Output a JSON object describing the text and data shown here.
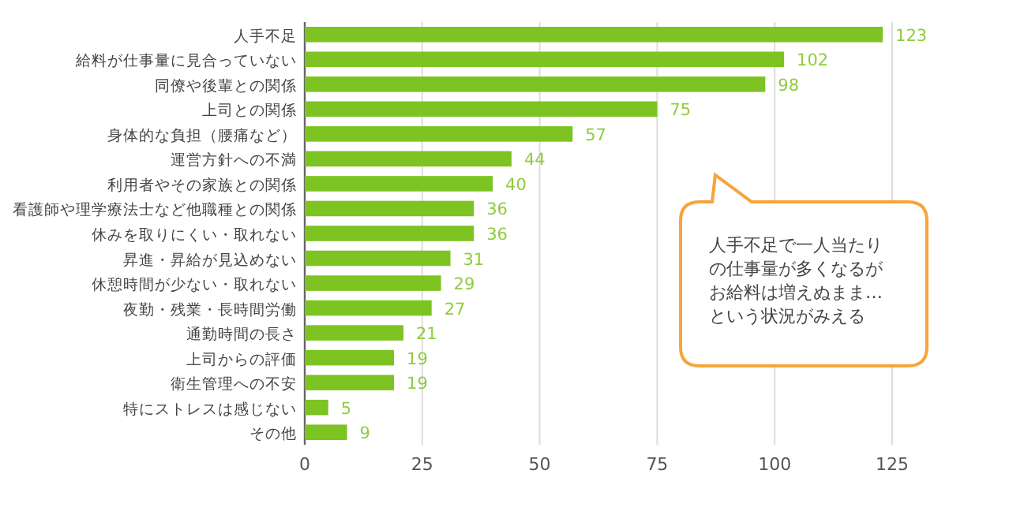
{
  "chart_data": {
    "type": "bar",
    "orientation": "horizontal",
    "categories": [
      "人手不足",
      "給料が仕事量に見合っていない",
      "同僚や後輩との関係",
      "上司との関係",
      "身体的な負担（腰痛など）",
      "運営方針への不満",
      "利用者やその家族との関係",
      "看護師や理学療法士など他職種との関係",
      "休みを取りにくい・取れない",
      "昇進・昇給が見込めない",
      "休憩時間が少ない・取れない",
      "夜勤・残業・長時間労働",
      "通勤時間の長さ",
      "上司からの評価",
      "衛生管理への不安",
      "特にストレスは感じない",
      "その他"
    ],
    "values": [
      123,
      102,
      98,
      75,
      57,
      44,
      40,
      36,
      36,
      31,
      29,
      27,
      21,
      19,
      19,
      5,
      9
    ],
    "color": "#7dc322",
    "data_labels": true,
    "grid": "x",
    "xlim": [
      0,
      125
    ],
    "xticks": [
      0,
      25,
      50,
      75,
      100,
      125
    ],
    "annotations": [
      "人手不足で一人当たりの仕事量が多くなるがお給料は増えぬまま…という状況がみえる"
    ]
  }
}
